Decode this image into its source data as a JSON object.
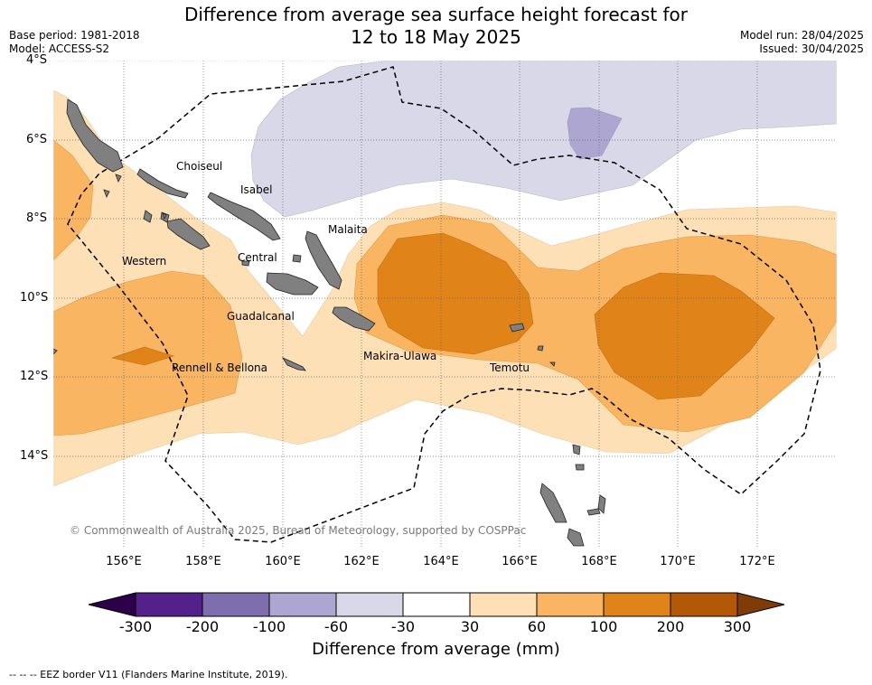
{
  "header": {
    "title_line1": "Difference from average sea surface height forecast for",
    "title_line2": "12 to 18 May 2025",
    "base_period": "Base period: 1981-2018",
    "model": "Model: ACCESS-S2",
    "model_run": "Model run: 28/04/2025",
    "issued": "Issued: 30/04/2025"
  },
  "map": {
    "lat_ticks": [
      "4°S",
      "6°S",
      "8°S",
      "10°S",
      "12°S",
      "14°S"
    ],
    "lon_ticks": [
      "156°E",
      "158°E",
      "160°E",
      "162°E",
      "164°E",
      "166°E",
      "168°E",
      "170°E",
      "172°E"
    ],
    "places": [
      "Choiseul",
      "Isabel",
      "Malaita",
      "Western",
      "Central",
      "Guadalcanal",
      "Makira-Ulawa",
      "Rennell & Bellona",
      "Temotu"
    ],
    "copyright": "© Commonwealth of Australia 2025, Bureau of Meteorology, supported by COSPPac",
    "colors": {
      "land": "#808080",
      "neg_light": "#d8d8e9",
      "neg_mid": "#ada6d0",
      "pos_light": "#fde0b5",
      "pos_mid": "#f9b562",
      "pos_dark": "#e0841a"
    }
  },
  "colorbar": {
    "ticks": [
      "-300",
      "-200",
      "-100",
      "-60",
      "-30",
      "30",
      "60",
      "100",
      "200",
      "300"
    ],
    "colors": [
      "#54208a",
      "#7f6ead",
      "#ada6d0",
      "#d8d8e9",
      "#ffffff",
      "#fde0b5",
      "#f9b562",
      "#e0841a",
      "#b35806"
    ],
    "extend_low_color": "#2d004b",
    "extend_high_color": "#7f3b08",
    "title": "Difference from average (mm)"
  },
  "footnote": "--  --  -- EEZ border V11 (Flanders Marine Institute, 2019)."
}
